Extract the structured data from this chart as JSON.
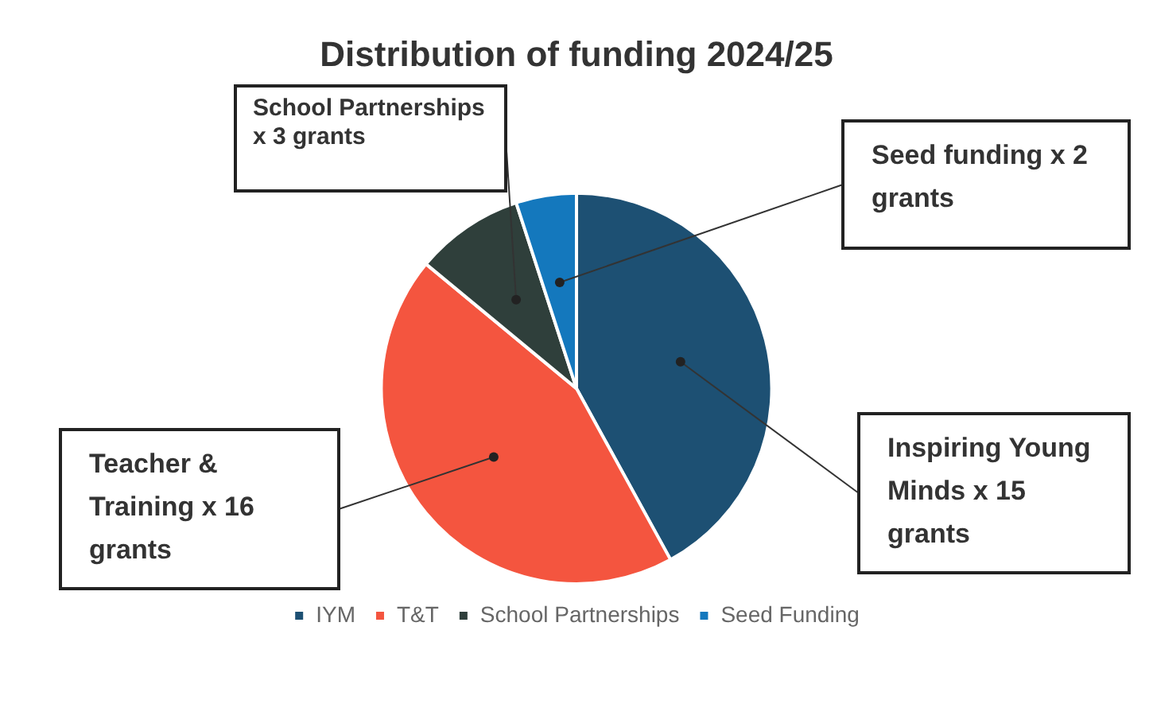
{
  "chart_data": {
    "type": "pie",
    "title": "Distribution of funding 2024/25",
    "categories": [
      "IYM",
      "T&T",
      "School Partnerships",
      "Seed Funding"
    ],
    "values": [
      42,
      44,
      9,
      5
    ],
    "colors": [
      "#1d5073",
      "#f4553f",
      "#2f3f3b",
      "#1478bd"
    ],
    "value_labels": [
      "Inspiring Young Minds x 15 grants",
      "Teacher & Training x 16 grants",
      "School Partnerships x 3 grants",
      "Seed funding x 2 grants"
    ],
    "legend": "bottom"
  }
}
